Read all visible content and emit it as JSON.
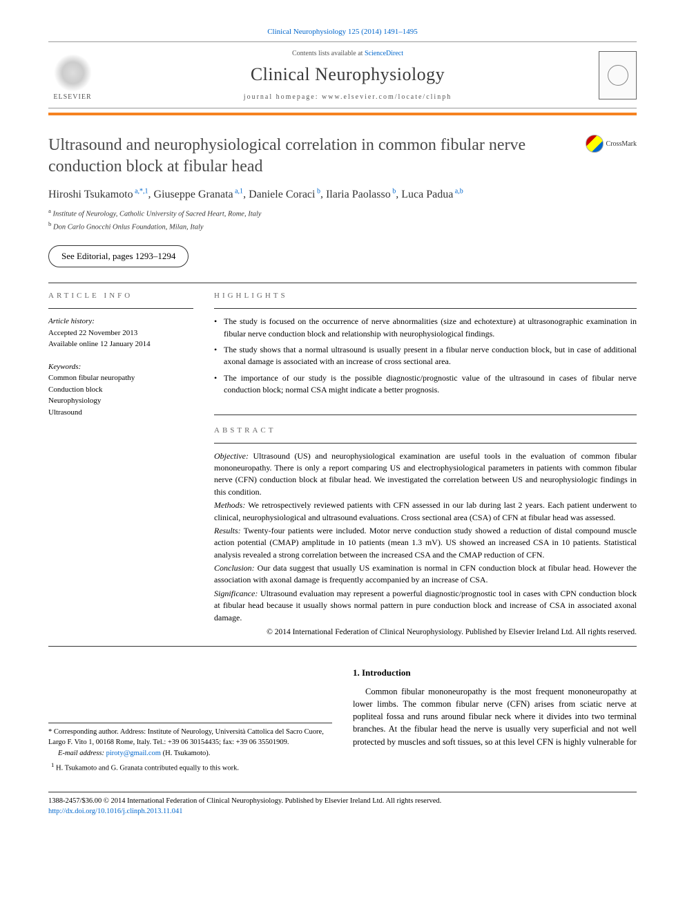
{
  "citation": "Clinical Neurophysiology 125 (2014) 1491–1495",
  "header": {
    "contents_prefix": "Contents lists available at ",
    "contents_link": "ScienceDirect",
    "journal_name": "Clinical Neurophysiology",
    "homepage_prefix": "journal homepage: ",
    "homepage": "www.elsevier.com/locate/clinph",
    "publisher": "ELSEVIER"
  },
  "crossmark": "CrossMark",
  "title": "Ultrasound and neurophysiological correlation in common fibular nerve conduction block at fibular head",
  "authors": [
    {
      "name": "Hiroshi Tsukamoto",
      "sup": "a,*,1"
    },
    {
      "name": "Giuseppe Granata",
      "sup": "a,1"
    },
    {
      "name": "Daniele Coraci",
      "sup": "b"
    },
    {
      "name": "Ilaria Paolasso",
      "sup": "b"
    },
    {
      "name": "Luca Padua",
      "sup": "a,b"
    }
  ],
  "affiliations": [
    {
      "sup": "a",
      "text": "Institute of Neurology, Catholic University of Sacred Heart, Rome, Italy"
    },
    {
      "sup": "b",
      "text": "Don Carlo Gnocchi Onlus Foundation, Milan, Italy"
    }
  ],
  "editorial_note": "See Editorial, pages 1293–1294",
  "labels": {
    "article_info": "ARTICLE INFO",
    "highlights": "HIGHLIGHTS",
    "abstract": "ABSTRACT"
  },
  "article_info": {
    "history_label": "Article history:",
    "accepted": "Accepted 22 November 2013",
    "online": "Available online 12 January 2014",
    "keywords_label": "Keywords:",
    "keywords": [
      "Common fibular neuropathy",
      "Conduction block",
      "Neurophysiology",
      "Ultrasound"
    ]
  },
  "highlights": [
    "The study is focused on the occurrence of nerve abnormalities (size and echotexture) at ultrasonographic examination in fibular nerve conduction block and relationship with neurophysiological findings.",
    "The study shows that a normal ultrasound is usually present in a fibular nerve conduction block, but in case of additional axonal damage is associated with an increase of cross sectional area.",
    "The importance of our study is the possible diagnostic/prognostic value of the ultrasound in cases of fibular nerve conduction block; normal CSA might indicate a better prognosis."
  ],
  "abstract": {
    "objective_label": "Objective:",
    "objective": "Ultrasound (US) and neurophysiological examination are useful tools in the evaluation of common fibular mononeuropathy. There is only a report comparing US and electrophysiological parameters in patients with common fibular nerve (CFN) conduction block at fibular head. We investigated the correlation between US and neurophysiologic findings in this condition.",
    "methods_label": "Methods:",
    "methods": "We retrospectively reviewed patients with CFN assessed in our lab during last 2 years. Each patient underwent to clinical, neurophysiological and ultrasound evaluations. Cross sectional area (CSA) of CFN at fibular head was assessed.",
    "results_label": "Results:",
    "results": "Twenty-four patients were included. Motor nerve conduction study showed a reduction of distal compound muscle action potential (CMAP) amplitude in 10 patients (mean 1.3 mV). US showed an increased CSA in 10 patients. Statistical analysis revealed a strong correlation between the increased CSA and the CMAP reduction of CFN.",
    "conclusion_label": "Conclusion:",
    "conclusion": "Our data suggest that usually US examination is normal in CFN conduction block at fibular head. However the association with axonal damage is frequently accompanied by an increase of CSA.",
    "significance_label": "Significance:",
    "significance": "Ultrasound evaluation may represent a powerful diagnostic/prognostic tool in cases with CPN conduction block at fibular head because it usually shows normal pattern in pure conduction block and increase of CSA in associated axonal damage.",
    "copyright": "© 2014 International Federation of Clinical Neurophysiology. Published by Elsevier Ireland Ltd. All rights reserved."
  },
  "intro": {
    "heading": "1. Introduction",
    "text": "Common fibular mononeuropathy is the most frequent mononeuropathy at lower limbs. The common fibular nerve (CFN) arises from sciatic nerve at popliteal fossa and runs around fibular neck where it divides into two terminal branches. At the fibular head the nerve is usually very superficial and not well protected by muscles and soft tissues, so at this level CFN is highly vulnerable for"
  },
  "footnotes": {
    "corr_marker": "*",
    "corr": "Corresponding author. Address: Institute of Neurology, Università Cattolica del Sacro Cuore, Largo F. Vito 1, 00168 Rome, Italy. Tel.: +39 06 30154435; fax: +39 06 35501909.",
    "email_label": "E-mail address:",
    "email": "piroty@gmail.com",
    "email_person": "(H. Tsukamoto).",
    "note1_marker": "1",
    "note1": "H. Tsukamoto and G. Granata contributed equally to this work."
  },
  "footer": {
    "line1": "1388-2457/$36.00 © 2014 International Federation of Clinical Neurophysiology. Published by Elsevier Ireland Ltd. All rights reserved.",
    "doi": "http://dx.doi.org/10.1016/j.clinph.2013.11.041"
  },
  "colors": {
    "accent_orange": "#f58220",
    "link_blue": "#0066cc",
    "text_gray": "#4a4a4a",
    "border_gray": "#333333"
  }
}
